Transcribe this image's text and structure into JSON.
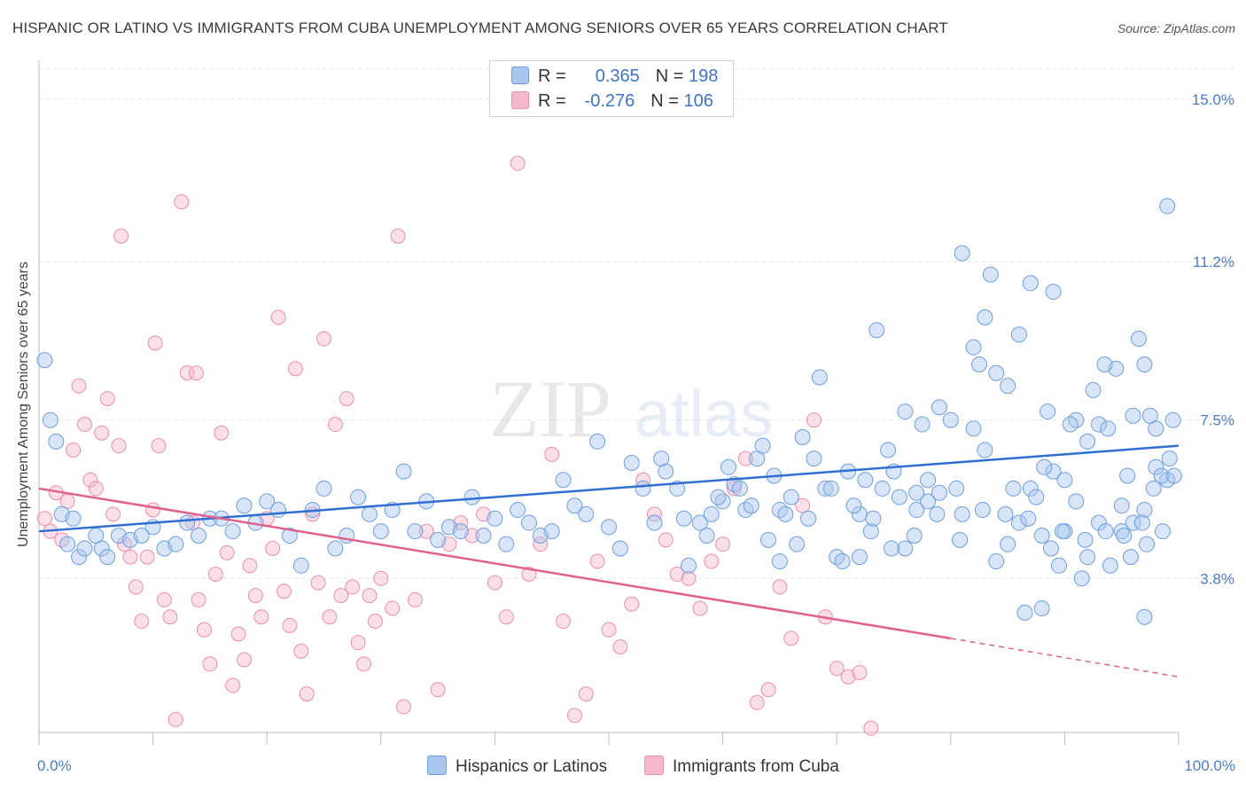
{
  "header": {
    "title": "HISPANIC OR LATINO VS IMMIGRANTS FROM CUBA UNEMPLOYMENT AMONG SENIORS OVER 65 YEARS CORRELATION CHART",
    "source": "Source: ZipAtlas.com"
  },
  "watermark": {
    "zip": "ZIP",
    "atlas": "atlas"
  },
  "legend": {
    "r_label": "R =",
    "n_label": "N =",
    "rows": [
      {
        "r": "0.365",
        "n": "198",
        "color": "#a9c6ef"
      },
      {
        "r": "-0.276",
        "n": "106",
        "color": "#f5b8cb"
      }
    ]
  },
  "bottom_legend": {
    "items": [
      {
        "label": "Hispanics or Latinos",
        "color": "#a9c6ef"
      },
      {
        "label": "Immigrants from Cuba",
        "color": "#f5b8cb"
      }
    ]
  },
  "chart_data": {
    "type": "scatter",
    "title": "HISPANIC OR LATINO VS IMMIGRANTS FROM CUBA UNEMPLOYMENT AMONG SENIORS OVER 65 YEARS CORRELATION CHART",
    "xlabel": "",
    "ylabel": "Unemployment Among Seniors over 65 years",
    "xlim": [
      0,
      100
    ],
    "ylim": [
      0.2,
      15.7
    ],
    "x_tick_labels": [
      "0.0%",
      "100.0%"
    ],
    "y_ticks": [
      3.8,
      7.5,
      11.2,
      15.0
    ],
    "y_tick_labels": [
      "3.8%",
      "7.5%",
      "11.2%",
      "15.0%"
    ],
    "grid": true,
    "colors": {
      "blue_point": "#a9c6ef",
      "blue_line": "#2f6fd1",
      "pink_point": "#f5b8cb",
      "pink_line": "#e0608f",
      "tick": "#4a7cc7"
    },
    "series": [
      {
        "name": "Hispanics or Latinos",
        "trend": {
          "x0": 0,
          "y0": 4.9,
          "x1": 100,
          "y1": 6.9
        },
        "points": [
          [
            0.5,
            8.9
          ],
          [
            1,
            7.5
          ],
          [
            1.5,
            7
          ],
          [
            2,
            5.3
          ],
          [
            2.5,
            4.6
          ],
          [
            3,
            5.2
          ],
          [
            3.5,
            4.3
          ],
          [
            4,
            4.5
          ],
          [
            5,
            4.8
          ],
          [
            5.5,
            4.5
          ],
          [
            6,
            4.3
          ],
          [
            7,
            4.8
          ],
          [
            8,
            4.7
          ],
          [
            9,
            4.8
          ],
          [
            10,
            5
          ],
          [
            11,
            4.5
          ],
          [
            12,
            4.6
          ],
          [
            13,
            5.1
          ],
          [
            14,
            4.8
          ],
          [
            15,
            5.2
          ],
          [
            16,
            5.2
          ],
          [
            17,
            4.9
          ],
          [
            18,
            5.5
          ],
          [
            19,
            5.1
          ],
          [
            20,
            5.6
          ],
          [
            21,
            5.4
          ],
          [
            22,
            4.8
          ],
          [
            23,
            4.1
          ],
          [
            24,
            5.4
          ],
          [
            25,
            5.9
          ],
          [
            26,
            4.5
          ],
          [
            27,
            4.8
          ],
          [
            28,
            5.7
          ],
          [
            29,
            5.3
          ],
          [
            30,
            4.9
          ],
          [
            31,
            5.4
          ],
          [
            32,
            6.3
          ],
          [
            33,
            4.9
          ],
          [
            34,
            5.6
          ],
          [
            35,
            4.7
          ],
          [
            36,
            5
          ],
          [
            37,
            4.9
          ],
          [
            38,
            5.7
          ],
          [
            39,
            4.8
          ],
          [
            40,
            5.2
          ],
          [
            41,
            4.6
          ],
          [
            42,
            5.4
          ],
          [
            43,
            5.1
          ],
          [
            44,
            4.8
          ],
          [
            45,
            4.9
          ],
          [
            46,
            6.1
          ],
          [
            47,
            5.5
          ],
          [
            48,
            5.3
          ],
          [
            49,
            7
          ],
          [
            50,
            5
          ],
          [
            51,
            4.5
          ],
          [
            52,
            6.5
          ],
          [
            53,
            5.9
          ],
          [
            54,
            5.1
          ],
          [
            55,
            6.3
          ],
          [
            56,
            5.9
          ],
          [
            57,
            4.1
          ],
          [
            58,
            5.1
          ],
          [
            59,
            5.3
          ],
          [
            60,
            5.6
          ],
          [
            61,
            6
          ],
          [
            62,
            5.4
          ],
          [
            63,
            6.6
          ],
          [
            64,
            4.7
          ],
          [
            65,
            5.4
          ],
          [
            66,
            5.7
          ],
          [
            67,
            7.1
          ],
          [
            68,
            6.6
          ],
          [
            69,
            5.9
          ],
          [
            70,
            4.3
          ],
          [
            71,
            6.3
          ],
          [
            72,
            5.3
          ],
          [
            73,
            4.9
          ],
          [
            74,
            5.9
          ],
          [
            75,
            6.3
          ],
          [
            76,
            4.5
          ],
          [
            77,
            5.4
          ],
          [
            78,
            5.6
          ],
          [
            79,
            7.8
          ],
          [
            80,
            7.5
          ],
          [
            81,
            5.3
          ],
          [
            82,
            9.2
          ],
          [
            83,
            9.9
          ],
          [
            84,
            4.2
          ],
          [
            85,
            4.6
          ],
          [
            86,
            5.1
          ],
          [
            87,
            5.9
          ],
          [
            88,
            3.1
          ],
          [
            89,
            6.3
          ],
          [
            90,
            6.1
          ],
          [
            91,
            7.5
          ],
          [
            92,
            7
          ],
          [
            93,
            5.1
          ],
          [
            94,
            4.1
          ],
          [
            95,
            4.9
          ],
          [
            96,
            5.1
          ],
          [
            97,
            5.4
          ],
          [
            98,
            6.4
          ],
          [
            99,
            6.1
          ],
          [
            73.5,
            9.6
          ],
          [
            84,
            8.6
          ],
          [
            88.5,
            7.7
          ],
          [
            90.5,
            7.4
          ],
          [
            93,
            7.4
          ],
          [
            94.5,
            8.7
          ],
          [
            96.5,
            9.4
          ],
          [
            97,
            8.8
          ],
          [
            98,
            7.3
          ],
          [
            81,
            11.4
          ],
          [
            83.5,
            10.9
          ],
          [
            87,
            10.7
          ],
          [
            89,
            10.5
          ],
          [
            92.5,
            8.2
          ],
          [
            93.5,
            8.8
          ],
          [
            96,
            7.6
          ],
          [
            97.5,
            7.6
          ],
          [
            99,
            12.5
          ],
          [
            97,
            2.9
          ],
          [
            98.5,
            6.2
          ],
          [
            99.5,
            7.5
          ],
          [
            86.5,
            3
          ],
          [
            89.5,
            4.1
          ],
          [
            91.5,
            3.8
          ],
          [
            88,
            4.8
          ],
          [
            90,
            4.9
          ],
          [
            92,
            4.3
          ],
          [
            95,
            5.5
          ],
          [
            76,
            7.7
          ],
          [
            77.5,
            7.4
          ],
          [
            79,
            5.8
          ],
          [
            80.5,
            5.9
          ],
          [
            82,
            7.3
          ],
          [
            83,
            6.8
          ],
          [
            85.5,
            5.9
          ],
          [
            87.5,
            5.7
          ],
          [
            61.5,
            5.9
          ],
          [
            63.5,
            6.9
          ],
          [
            65.5,
            5.3
          ],
          [
            66.5,
            4.6
          ],
          [
            68.5,
            8.5
          ],
          [
            70.5,
            4.2
          ],
          [
            72.5,
            6.1
          ],
          [
            74.5,
            6.8
          ],
          [
            75.5,
            5.7
          ],
          [
            77,
            5.8
          ],
          [
            78,
            6.1
          ],
          [
            82.5,
            8.8
          ],
          [
            85,
            8.3
          ],
          [
            86,
            9.5
          ],
          [
            88.2,
            6.4
          ],
          [
            91,
            5.6
          ],
          [
            93.8,
            7.3
          ],
          [
            95.5,
            6.2
          ],
          [
            96.8,
            5.1
          ],
          [
            97.8,
            5.9
          ],
          [
            99.2,
            6.6
          ],
          [
            60.5,
            6.4
          ],
          [
            62.5,
            5.5
          ],
          [
            64.5,
            6.2
          ],
          [
            67.5,
            5.2
          ],
          [
            69.5,
            5.9
          ],
          [
            71.5,
            5.5
          ],
          [
            73.2,
            5.2
          ],
          [
            74.8,
            4.5
          ],
          [
            76.8,
            4.8
          ],
          [
            78.8,
            5.3
          ],
          [
            80.8,
            4.7
          ],
          [
            82.8,
            5.4
          ],
          [
            84.8,
            5.3
          ],
          [
            86.8,
            5.2
          ],
          [
            89.8,
            4.9
          ],
          [
            91.8,
            4.7
          ],
          [
            93.6,
            4.9
          ],
          [
            95.8,
            4.3
          ],
          [
            97.2,
            4.6
          ],
          [
            98.6,
            4.9
          ],
          [
            54.6,
            6.6
          ],
          [
            56.6,
            5.2
          ],
          [
            58.6,
            4.8
          ],
          [
            59.6,
            5.7
          ],
          [
            65,
            4.2
          ],
          [
            72,
            4.3
          ],
          [
            88.8,
            4.5
          ],
          [
            95.2,
            4.8
          ],
          [
            99.6,
            6.2
          ]
        ]
      },
      {
        "name": "Immigrants from Cuba",
        "trend": {
          "x0": 0,
          "y0": 5.9,
          "x1": 80,
          "y1": 2.4,
          "dashed_to_x": 100,
          "dashed_to_y": 1.5
        },
        "points": [
          [
            0.5,
            5.2
          ],
          [
            1,
            4.9
          ],
          [
            1.5,
            5.8
          ],
          [
            2,
            4.7
          ],
          [
            2.5,
            5.6
          ],
          [
            3,
            6.8
          ],
          [
            3.5,
            8.3
          ],
          [
            4,
            7.4
          ],
          [
            4.5,
            6.1
          ],
          [
            5,
            5.9
          ],
          [
            5.5,
            7.2
          ],
          [
            6,
            8
          ],
          [
            6.5,
            5.3
          ],
          [
            7,
            6.9
          ],
          [
            7.5,
            4.6
          ],
          [
            8,
            4.3
          ],
          [
            8.5,
            3.6
          ],
          [
            9,
            2.8
          ],
          [
            9.5,
            4.3
          ],
          [
            10,
            5.4
          ],
          [
            10.5,
            6.9
          ],
          [
            11,
            3.3
          ],
          [
            11.5,
            2.9
          ],
          [
            12,
            0.5
          ],
          [
            12.5,
            12.6
          ],
          [
            13,
            8.6
          ],
          [
            13.5,
            5.1
          ],
          [
            14,
            3.3
          ],
          [
            14.5,
            2.6
          ],
          [
            15,
            1.8
          ],
          [
            15.5,
            3.9
          ],
          [
            16,
            7.2
          ],
          [
            16.5,
            4.4
          ],
          [
            17,
            1.3
          ],
          [
            17.5,
            2.5
          ],
          [
            18,
            1.9
          ],
          [
            18.5,
            4.1
          ],
          [
            19,
            3.4
          ],
          [
            19.5,
            2.9
          ],
          [
            20,
            5.2
          ],
          [
            20.5,
            4.5
          ],
          [
            21,
            9.9
          ],
          [
            21.5,
            3.5
          ],
          [
            22,
            2.7
          ],
          [
            22.5,
            8.7
          ],
          [
            23,
            2.1
          ],
          [
            23.5,
            1.1
          ],
          [
            24,
            5.3
          ],
          [
            24.5,
            3.7
          ],
          [
            25,
            9.4
          ],
          [
            25.5,
            2.9
          ],
          [
            26,
            7.4
          ],
          [
            26.5,
            3.4
          ],
          [
            27,
            8
          ],
          [
            27.5,
            3.6
          ],
          [
            28,
            2.3
          ],
          [
            28.5,
            1.8
          ],
          [
            29,
            3.4
          ],
          [
            29.5,
            2.8
          ],
          [
            30,
            3.8
          ],
          [
            31,
            3.1
          ],
          [
            32,
            0.8
          ],
          [
            33,
            3.3
          ],
          [
            34,
            4.9
          ],
          [
            35,
            1.2
          ],
          [
            36,
            4.6
          ],
          [
            37,
            5.1
          ],
          [
            38,
            4.8
          ],
          [
            39,
            5.3
          ],
          [
            40,
            3.7
          ],
          [
            41,
            2.9
          ],
          [
            42,
            13.5
          ],
          [
            43,
            3.9
          ],
          [
            44,
            4.6
          ],
          [
            45,
            6.7
          ],
          [
            46,
            2.8
          ],
          [
            47,
            0.6
          ],
          [
            48,
            1.1
          ],
          [
            49,
            4.2
          ],
          [
            50,
            2.6
          ],
          [
            51,
            2.2
          ],
          [
            52,
            3.2
          ],
          [
            53,
            6.1
          ],
          [
            54,
            5.3
          ],
          [
            55,
            4.7
          ],
          [
            56,
            3.9
          ],
          [
            57,
            3.8
          ],
          [
            58,
            3.1
          ],
          [
            59,
            4.2
          ],
          [
            60,
            4.6
          ],
          [
            61,
            5.9
          ],
          [
            62,
            6.6
          ],
          [
            63,
            0.9
          ],
          [
            64,
            1.2
          ],
          [
            65,
            3.6
          ],
          [
            66,
            2.4
          ],
          [
            67,
            5.5
          ],
          [
            68,
            7.5
          ],
          [
            69,
            2.9
          ],
          [
            70,
            1.7
          ],
          [
            71,
            1.5
          ],
          [
            72,
            1.6
          ],
          [
            73,
            0.3
          ],
          [
            7.2,
            11.8
          ],
          [
            31.5,
            11.8
          ],
          [
            10.2,
            9.3
          ],
          [
            13.8,
            8.6
          ]
        ]
      }
    ]
  }
}
